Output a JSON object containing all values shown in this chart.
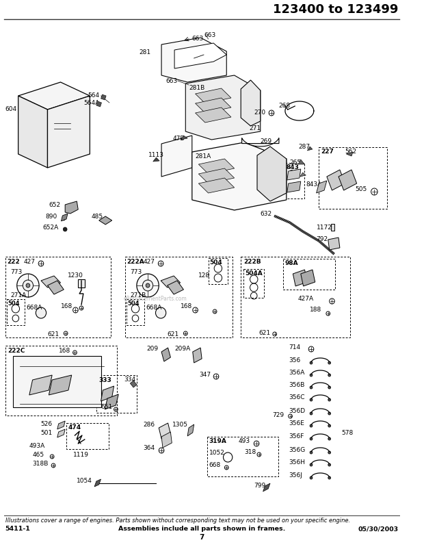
{
  "title": "123400 to 123499",
  "title_fontsize": 13,
  "footer_left": "5411-1",
  "footer_center": "Assemblies include all parts shown in frames.",
  "footer_right": "05/30/2003",
  "footer_page": "7",
  "disclaimer": "Illustrations cover a range of engines. Parts shown without corresponding text may not be used on your specific engine.",
  "bg_color": "#ffffff",
  "header_line_color": "#333333",
  "watermark": "eReplacementParts.com"
}
